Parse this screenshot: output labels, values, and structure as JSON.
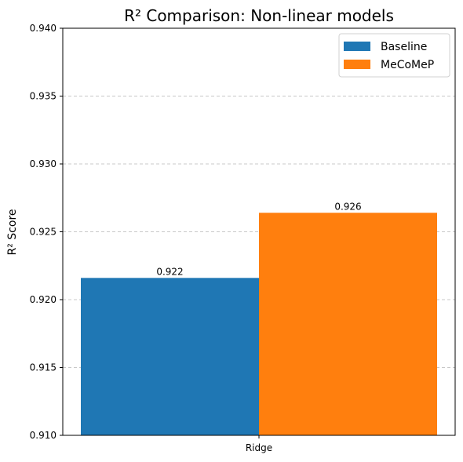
{
  "chart_data": {
    "type": "bar",
    "title": "R² Comparison: Non-linear models",
    "xlabel": "",
    "ylabel": "R² Score",
    "categories": [
      "Ridge"
    ],
    "series": [
      {
        "name": "Baseline",
        "values": [
          0.9216
        ],
        "label": "0.922",
        "color": "#1f77b4"
      },
      {
        "name": "MeCoMeP",
        "values": [
          0.9264
        ],
        "label": "0.926",
        "color": "#ff7f0e"
      }
    ],
    "ylim": [
      0.91,
      0.94
    ],
    "yticks": [
      "0.910",
      "0.915",
      "0.920",
      "0.925",
      "0.930",
      "0.935",
      "0.940"
    ],
    "grid": "y-dashed",
    "legend": "top-right"
  }
}
